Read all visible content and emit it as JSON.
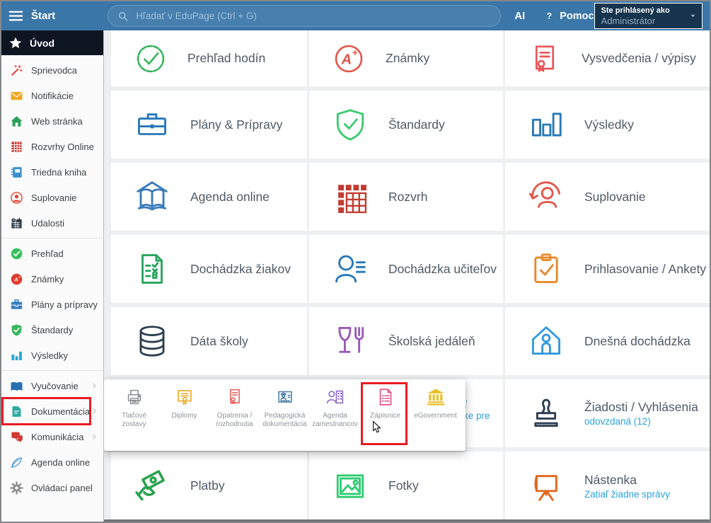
{
  "topbar": {
    "start_label": "Štart",
    "search_placeholder": "Hľadať v EduPage (Ctrl + G)",
    "ai_label": "AI",
    "help_label": "Pomoc",
    "account_line1": "Ste prihlásený ako",
    "account_line2": "Administrátor"
  },
  "sidebar": {
    "home": {
      "label": "Úvod",
      "icon": "star"
    },
    "groups": [
      {
        "items": [
          {
            "label": "Sprievodca",
            "icon": "wand",
            "color": "#e8463b"
          },
          {
            "label": "Notifikácie",
            "icon": "envelope",
            "color": "#f2a71f"
          },
          {
            "label": "Web stránka",
            "icon": "house-fill",
            "color": "#2fa05c"
          },
          {
            "label": "Rozvrhy Online",
            "icon": "grid-fill",
            "color": "#cc3d33"
          },
          {
            "label": "Triedna kniha",
            "icon": "notebook",
            "color": "#3a8fd0"
          },
          {
            "label": "Suplovanie",
            "icon": "person-circle",
            "color": "#e04838"
          },
          {
            "label": "Udalosti",
            "icon": "calendar",
            "color": "#2c3a47"
          }
        ]
      },
      {
        "items": [
          {
            "label": "Prehľad",
            "icon": "check-circle",
            "color": "#35c05a"
          },
          {
            "label": "Známky",
            "icon": "grade-fill",
            "color": "#e03c30"
          },
          {
            "label": "Plány a prípravy",
            "icon": "briefcase-fill",
            "color": "#3a7fc0"
          },
          {
            "label": "Štandardy",
            "icon": "shield-fill",
            "color": "#35b55a"
          },
          {
            "label": "Výsledky",
            "icon": "bars-fill",
            "color": "#29a8d8"
          }
        ]
      },
      {
        "items": [
          {
            "label": "Vyučovanie",
            "icon": "book-fill",
            "color": "#2a6fb0",
            "chevron": true
          },
          {
            "label": "Dokumentácia",
            "icon": "doc-fill",
            "color": "#2aa8a0",
            "chevron": true,
            "highlighted": true
          },
          {
            "label": "Komunikácia",
            "icon": "chat",
            "color": "#d03830",
            "chevron": true
          },
          {
            "label": "Agenda online",
            "icon": "pen",
            "color": "#4a90d9"
          },
          {
            "label": "Ovládací panel",
            "icon": "gear",
            "color": "#8a8a8a"
          }
        ]
      }
    ]
  },
  "grid": {
    "sublabel_color": "#29a3dc",
    "rows": [
      [
        {
          "label": "Prehľad hodín",
          "icon": "badge-check",
          "color": "#35b55c"
        },
        {
          "label": "Známky",
          "icon": "grade-a",
          "color": "#e2574c"
        },
        {
          "label": "Vysvedčenia / výpisy",
          "icon": "certificate",
          "color": "#e8555a"
        }
      ],
      [
        {
          "label": "Plány & Prípravy",
          "icon": "briefcase",
          "color": "#2878b8"
        },
        {
          "label": "Štandardy",
          "icon": "shield-check",
          "color": "#3ecb70"
        },
        {
          "label": "Výsledky",
          "icon": "bars",
          "color": "#2878b8"
        }
      ],
      [
        {
          "label": "Agenda online",
          "icon": "book-open",
          "color": "#3a7ab8"
        },
        {
          "label": "Rozvrh",
          "icon": "timetable",
          "color": "#c23b30"
        },
        {
          "label": "Suplovanie",
          "icon": "person-refresh",
          "color": "#e2574c"
        }
      ],
      [
        {
          "label": "Dochádzka žiakov",
          "icon": "checklist",
          "color": "#28a55c"
        },
        {
          "label": "Dochádzka učiteľov",
          "icon": "person-lines",
          "color": "#2878b8"
        },
        {
          "label": "Prihlasovanie / Ankety",
          "icon": "clipboard-check",
          "color": "#e8872a"
        }
      ],
      [
        {
          "label": "Dáta školy",
          "icon": "database",
          "color": "#2c3e50"
        },
        {
          "label": "Školská jedáleň",
          "icon": "cafeteria",
          "color": "#9b59b6"
        },
        {
          "label": "Dnešná dochádzka",
          "icon": "house-person",
          "color": "#3498db"
        }
      ],
      [
        {
          "empty": true
        },
        {
          "empty": true
        },
        {
          "label": "Žiadosti / Vyhlásenia",
          "icon": "stamp",
          "color": "#2c3e50",
          "sublabel": "odovzdaná (12)"
        }
      ],
      [
        {
          "label": "Platby",
          "icon": "payment",
          "color": "#28a24e"
        },
        {
          "label": "Fotky",
          "icon": "photo",
          "color": "#2ecc71"
        },
        {
          "label": "Nástenka",
          "icon": "easel",
          "color": "#e2661c",
          "sublabel": "Zatiaľ žiadne správy"
        }
      ]
    ]
  },
  "popup": {
    "items": [
      {
        "label": "Tlačové zostavy",
        "icon": "printer",
        "color": "#8a9096"
      },
      {
        "label": "Diplomy",
        "icon": "diploma",
        "color": "#eda620"
      },
      {
        "label": "Opatrenia / rozhodnutia",
        "icon": "decree",
        "color": "#e8605c"
      },
      {
        "label": "Pedagogická dokumentácia",
        "icon": "ped-doc",
        "color": "#4a7fa8"
      },
      {
        "label": "Agenda zamestnancov",
        "icon": "staff",
        "color": "#8e6bc8"
      },
      {
        "label": "Zápisnice",
        "icon": "minutes",
        "color": "#e8457c",
        "highlighted": true
      },
      {
        "label": "eGovernment",
        "icon": "egov",
        "color": "#e8c02c"
      }
    ]
  },
  "obscured_tile_fragment": {
    "line1": "ť",
    "line2": "ke pre",
    "color": "#2d9fd8"
  },
  "annotations": {
    "highlight_color": "#ea1b22"
  }
}
